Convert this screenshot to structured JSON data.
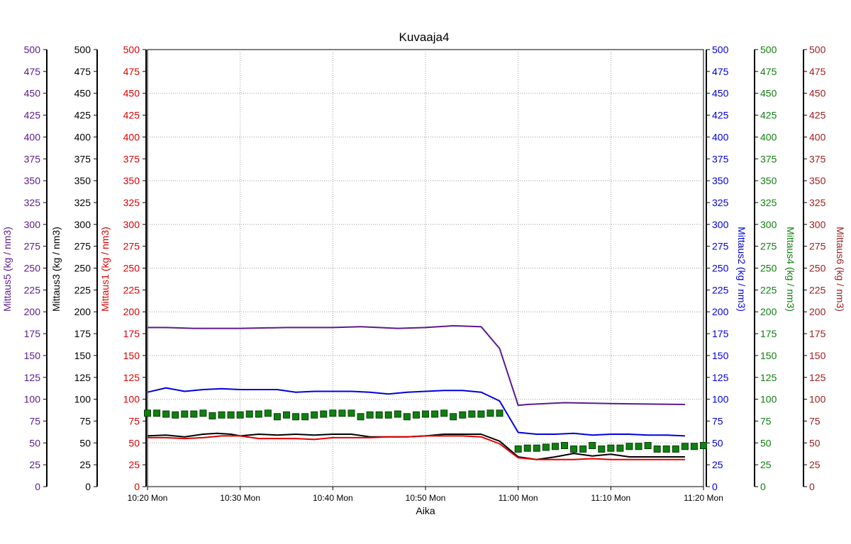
{
  "chart_data": {
    "type": "line",
    "title": "Kuvaaja4",
    "xlabel": "Aika",
    "x_ticks": [
      "10:20 Mon",
      "10:30 Mon",
      "10:40 Mon",
      "10:50 Mon",
      "11:00 Mon",
      "11:10 Mon",
      "11:20 Mon"
    ],
    "x_range_minutes": [
      0,
      60
    ],
    "ylim": [
      0,
      500
    ],
    "y_ticks": [
      0,
      25,
      50,
      75,
      100,
      125,
      150,
      175,
      200,
      225,
      250,
      275,
      300,
      325,
      350,
      375,
      400,
      425,
      450,
      475,
      500
    ],
    "grid": true,
    "axes": [
      {
        "key": "m5",
        "side": "left",
        "label": "Mittaus5",
        "unit": "(kg / nm3)",
        "color": "#5a1a8c"
      },
      {
        "key": "m3",
        "side": "left",
        "label": "Mittaus3",
        "unit": "(kg / nm3)",
        "color": "#000000"
      },
      {
        "key": "m1",
        "side": "left",
        "label": "Mittaus1",
        "unit": "(kg / nm3)",
        "color": "#e00000"
      },
      {
        "key": "m2",
        "side": "right",
        "label": "Mittaus2",
        "unit": "(kg / nm3)",
        "color": "#0000e0"
      },
      {
        "key": "m4",
        "side": "right",
        "label": "Mittaus4",
        "unit": "(kg / nm3)",
        "color": "#108010"
      },
      {
        "key": "m6",
        "side": "right",
        "label": "Mittaus6",
        "unit": "(kg / nm3)",
        "color": "#a02020"
      }
    ],
    "series": [
      {
        "name": "Mittaus5",
        "style": "line",
        "color": "#5a1a8c",
        "x": [
          0,
          2,
          5,
          10,
          15,
          20,
          23,
          25,
          27,
          30,
          33,
          36,
          38,
          40,
          41,
          45,
          50,
          58
        ],
        "y": [
          182,
          182,
          181,
          181,
          182,
          182,
          183,
          182,
          181,
          182,
          184,
          183,
          158,
          93,
          94,
          96,
          95,
          94
        ]
      },
      {
        "name": "Mittaus2",
        "style": "line",
        "color": "#0000e0",
        "x": [
          0,
          2,
          4,
          6,
          8,
          10,
          12,
          14,
          16,
          18,
          20,
          22,
          24,
          26,
          28,
          30,
          32,
          34,
          36,
          37,
          38,
          40,
          42,
          44,
          46,
          48,
          50,
          52,
          54,
          56,
          58
        ],
        "y": [
          108,
          113,
          109,
          111,
          112,
          111,
          111,
          111,
          108,
          109,
          109,
          109,
          108,
          106,
          108,
          109,
          110,
          110,
          108,
          103,
          98,
          62,
          60,
          60,
          61,
          59,
          60,
          60,
          59,
          59,
          58
        ]
      },
      {
        "name": "Mittaus3",
        "style": "line",
        "color": "#000000",
        "x": [
          0,
          2,
          4,
          6,
          7.5,
          9,
          10,
          12,
          14,
          16,
          18,
          20,
          22,
          24,
          26,
          28,
          30,
          32,
          34,
          36,
          38,
          40,
          42,
          44,
          46,
          48,
          50,
          52,
          54,
          56,
          58
        ],
        "y": [
          58,
          59,
          57,
          60,
          61,
          60,
          58,
          60,
          59,
          60,
          59,
          60,
          60,
          57,
          57,
          57,
          58,
          60,
          60,
          60,
          52,
          34,
          31,
          34,
          38,
          35,
          37,
          34,
          34,
          34,
          34
        ]
      },
      {
        "name": "Mittaus1",
        "style": "line",
        "color": "#e00000",
        "x": [
          0,
          2,
          4,
          6,
          8,
          10,
          12,
          14,
          16,
          18,
          20,
          22,
          24,
          26,
          28,
          30,
          32,
          34,
          36,
          38,
          40,
          42,
          44,
          46,
          48,
          50,
          52,
          54,
          56,
          58
        ],
        "y": [
          56,
          56,
          55,
          56,
          58,
          58,
          55,
          55,
          55,
          54,
          56,
          56,
          56,
          57,
          57,
          58,
          58,
          58,
          57,
          49,
          33,
          31,
          31,
          31,
          32,
          31,
          31,
          31,
          31,
          31
        ]
      },
      {
        "name": "Mittaus4",
        "style": "markers",
        "color": "#108010",
        "x": [
          0,
          1,
          2,
          3,
          4,
          5,
          6,
          7,
          8,
          9,
          10,
          11,
          12,
          13,
          14,
          15,
          16,
          17,
          18,
          19,
          20,
          21,
          22,
          23,
          24,
          25,
          26,
          27,
          28,
          29,
          30,
          31,
          32,
          33,
          34,
          35,
          36,
          37,
          38,
          40,
          41,
          42,
          43,
          44,
          45,
          46,
          47,
          48,
          49,
          50,
          51,
          52,
          53,
          54,
          55,
          56,
          57,
          58,
          59,
          60
        ],
        "y": [
          84,
          84,
          83,
          82,
          83,
          83,
          84,
          81,
          82,
          82,
          82,
          83,
          83,
          84,
          80,
          82,
          80,
          80,
          82,
          83,
          84,
          84,
          84,
          80,
          82,
          82,
          82,
          83,
          80,
          82,
          83,
          83,
          84,
          80,
          82,
          83,
          83,
          84,
          84,
          43,
          44,
          44,
          45,
          46,
          47,
          43,
          43,
          47,
          43,
          44,
          44,
          46,
          46,
          47,
          43,
          43,
          43,
          46,
          46,
          47
        ]
      }
    ]
  }
}
